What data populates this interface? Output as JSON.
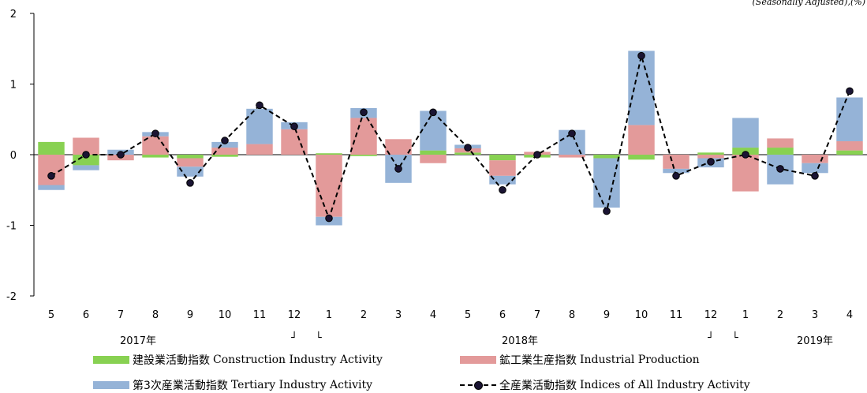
{
  "note": "(Seasonally Adjusted),(%)",
  "chart_data": {
    "type": "bar",
    "stacked": true,
    "categories": [
      "5",
      "6",
      "7",
      "8",
      "9",
      "10",
      "11",
      "12",
      "1",
      "2",
      "3",
      "4",
      "5",
      "6",
      "7",
      "8",
      "9",
      "10",
      "11",
      "12",
      "1",
      "2",
      "3",
      "4"
    ],
    "year_labels": [
      {
        "label": "2017年",
        "at": 3.0
      },
      {
        "label": "2018年",
        "at": 14.0
      },
      {
        "label": "2019年",
        "at": 22.5
      }
    ],
    "year_brackets": [
      {
        "glyph": "┘",
        "at": 7.5
      },
      {
        "glyph": "└",
        "at": 8.2
      },
      {
        "glyph": "┘",
        "at": 19.5
      },
      {
        "glyph": "└",
        "at": 20.2
      }
    ],
    "ylim": [
      -2,
      2
    ],
    "yticks": [
      -2,
      -1,
      0,
      1,
      2
    ],
    "series": [
      {
        "name": "建設業活動指数 Construction Industry Activity",
        "color": "#88d152",
        "values": [
          0.18,
          -0.15,
          0.0,
          -0.04,
          -0.05,
          -0.03,
          0.0,
          0.0,
          0.02,
          -0.02,
          0.0,
          0.06,
          0.03,
          -0.08,
          -0.04,
          0.0,
          -0.05,
          -0.07,
          0.0,
          0.03,
          0.1,
          0.1,
          0.0,
          0.06
        ]
      },
      {
        "name": "鉱工業生産指数 Industrial Production",
        "color": "#e39a9a",
        "values": [
          -0.43,
          0.24,
          -0.08,
          0.26,
          -0.12,
          0.1,
          0.15,
          0.36,
          -0.88,
          0.52,
          0.22,
          -0.12,
          0.06,
          -0.22,
          0.04,
          -0.04,
          0.0,
          0.42,
          -0.2,
          -0.05,
          -0.52,
          0.13,
          -0.12,
          0.13
        ]
      },
      {
        "name": "第3次産業活動指数 Tertiary Industry Activity",
        "color": "#95b3d7",
        "values": [
          -0.07,
          -0.07,
          0.07,
          0.06,
          -0.14,
          0.08,
          0.5,
          0.1,
          -0.12,
          0.14,
          -0.4,
          0.56,
          0.05,
          -0.12,
          0.0,
          0.35,
          -0.7,
          1.05,
          -0.06,
          -0.13,
          0.42,
          -0.42,
          -0.14,
          0.62
        ]
      }
    ],
    "line": {
      "name": "全産業活動指数 Indices of All Industry Activity",
      "color": "#000000",
      "values": [
        -0.3,
        0.0,
        0.0,
        0.3,
        -0.4,
        0.2,
        0.7,
        0.4,
        -0.9,
        0.6,
        -0.2,
        0.6,
        0.1,
        -0.5,
        0.0,
        0.3,
        -0.8,
        1.4,
        -0.3,
        -0.1,
        0.0,
        -0.2,
        -0.3,
        0.9
      ]
    },
    "legend_position": "bottom"
  },
  "legend": [
    {
      "jp": "建設業活動指数",
      "en": "Construction Industry Activity",
      "kind": "bar",
      "color": "#88d152"
    },
    {
      "jp": "鉱工業生産指数",
      "en": "Industrial Production",
      "kind": "bar",
      "color": "#e39a9a"
    },
    {
      "jp": "第3次産業活動指数",
      "en": "Tertiary Industry Activity",
      "kind": "bar",
      "color": "#95b3d7"
    },
    {
      "jp": "全産業活動指数",
      "en": " Indices of All Industry Activity",
      "kind": "line",
      "color": "#000000"
    }
  ]
}
